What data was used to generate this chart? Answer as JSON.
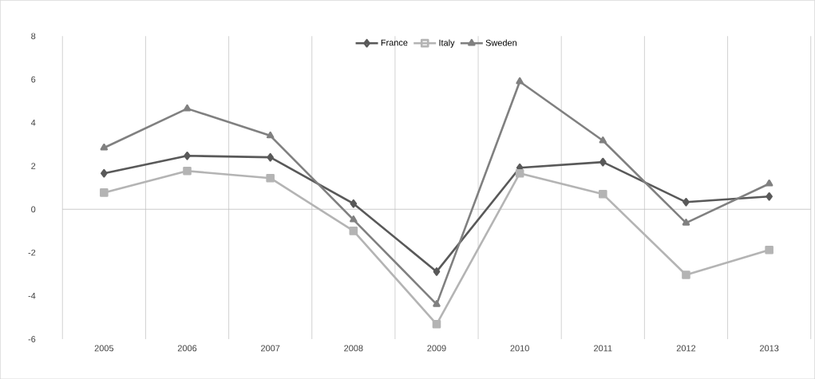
{
  "chart_data": {
    "type": "line",
    "categories": [
      "2005",
      "2006",
      "2007",
      "2008",
      "2009",
      "2010",
      "2011",
      "2012",
      "2013"
    ],
    "series": [
      {
        "name": "France",
        "color": "#595959",
        "marker": "diamond",
        "values": [
          1.66,
          2.47,
          2.4,
          0.26,
          -2.88,
          1.92,
          2.18,
          0.33,
          0.59
        ]
      },
      {
        "name": "Italy",
        "color": "#b4b4b4",
        "marker": "square",
        "values": [
          0.77,
          1.77,
          1.44,
          -1.0,
          -5.31,
          1.66,
          0.7,
          -3.03,
          -1.88
        ]
      },
      {
        "name": "Sweden",
        "color": "#808080",
        "marker": "triangle",
        "values": [
          2.84,
          4.65,
          3.4,
          -0.48,
          -4.39,
          5.9,
          3.17,
          -0.63,
          1.18
        ]
      }
    ],
    "ylim": [
      -6,
      8
    ],
    "yticks": [
      -6,
      -4,
      -2,
      0,
      2,
      4,
      6,
      8
    ],
    "grid": "x",
    "legend": "top",
    "line_style": "solid"
  }
}
